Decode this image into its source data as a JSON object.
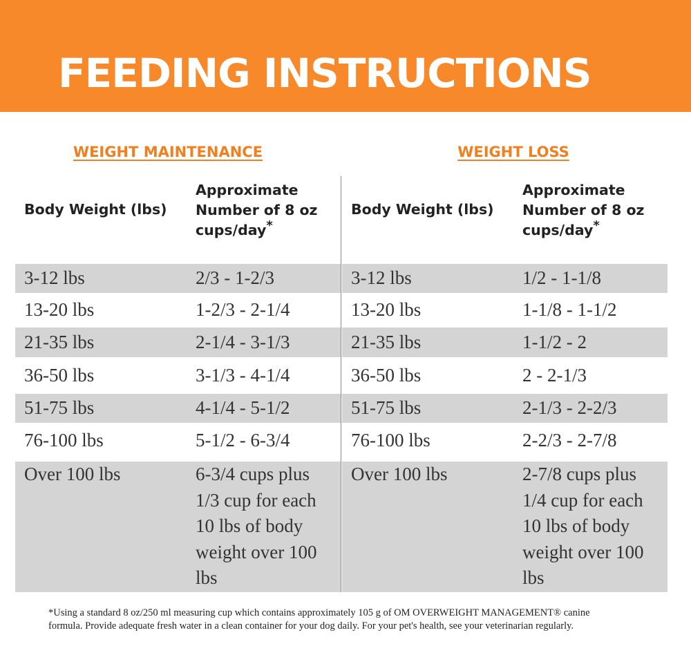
{
  "header": {
    "title": "FEEDING INSTRUCTIONS"
  },
  "tables": [
    {
      "heading": "WEIGHT MAINTENANCE",
      "columns": [
        "Body Weight (lbs)",
        "Approximate Number of 8 oz cups/day"
      ],
      "column_mark": "*",
      "rows": [
        [
          "3-12 lbs",
          "2/3 - 1-2/3"
        ],
        [
          "13-20 lbs",
          "1-2/3 - 2-1/4"
        ],
        [
          "21-35 lbs",
          "2-1/4 - 3-1/3"
        ],
        [
          "36-50 lbs",
          "3-1/3 - 4-1/4"
        ],
        [
          "51-75 lbs",
          "4-1/4 - 5-1/2"
        ],
        [
          "76-100 lbs",
          "5-1/2 - 6-3/4"
        ],
        [
          "Over 100 lbs",
          "6-3/4 cups plus 1/3 cup for each 10 lbs of body weight over 100 lbs"
        ]
      ]
    },
    {
      "heading": "WEIGHT LOSS",
      "columns": [
        "Body Weight (lbs)",
        "Approximate Number of 8 oz cups/day"
      ],
      "column_mark": "*",
      "rows": [
        [
          "3-12 lbs",
          "1/2 - 1-1/8"
        ],
        [
          "13-20 lbs",
          "1-1/8 - 1-1/2"
        ],
        [
          "21-35 lbs",
          "1-1/2 - 2"
        ],
        [
          "36-50 lbs",
          "2 - 2-1/3"
        ],
        [
          "51-75 lbs",
          "2-1/3 - 2-2/3"
        ],
        [
          "76-100 lbs",
          "2-2/3 - 2-7/8"
        ],
        [
          "Over 100 lbs",
          "2-7/8 cups plus 1/4 cup for each 10 lbs of body weight over 100 lbs"
        ]
      ]
    }
  ],
  "footnote": "*Using a standard 8 oz/250 ml measuring cup which contains approximately 105 g of OM OVERWEIGHT MANAGEMENT® canine formula. Provide adequate fresh water in a clean container for your dog daily. For your pet's health, see your veterinarian regularly."
}
